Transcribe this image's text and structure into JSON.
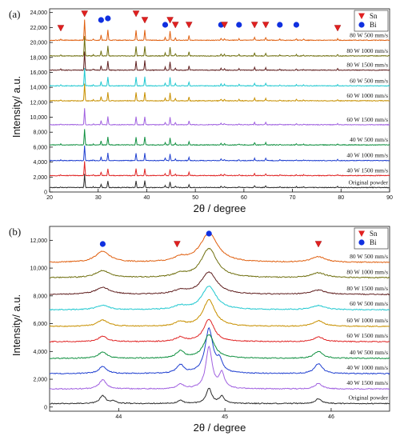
{
  "chart_data": [
    {
      "type": "line",
      "panel_label": "(a)",
      "xlabel": "2θ / degree",
      "ylabel": "Intensity/ a.u.",
      "xlim": [
        20,
        90
      ],
      "ylim": [
        0,
        24500
      ],
      "xticks": [
        20,
        30,
        40,
        50,
        60,
        70,
        80,
        90
      ],
      "yticks": [
        0,
        2000,
        4000,
        6000,
        8000,
        10000,
        12000,
        14000,
        16000,
        18000,
        20000,
        22000,
        24000
      ],
      "ytick_labels": [
        "0",
        "2,000",
        "4,000",
        "6,000",
        "8,000",
        "10,000",
        "12,000",
        "14,000",
        "16,000",
        "18,000",
        "20,000",
        "22,000",
        "24,000"
      ],
      "grid": false,
      "legend": {
        "position": "top-right",
        "entries": [
          {
            "name": "Sn",
            "marker": "triangle-down",
            "color": "#e02020"
          },
          {
            "name": "Bi",
            "marker": "circle",
            "color": "#1030e0"
          }
        ]
      },
      "peaks": [
        {
          "pos": 22.3,
          "h": 0.05
        },
        {
          "pos": 27.2,
          "h": 1.0
        },
        {
          "pos": 29.0,
          "h": 0.06
        },
        {
          "pos": 30.6,
          "h": 0.25
        },
        {
          "pos": 32.0,
          "h": 0.5
        },
        {
          "pos": 37.8,
          "h": 0.5
        },
        {
          "pos": 39.6,
          "h": 0.5
        },
        {
          "pos": 43.8,
          "h": 0.15
        },
        {
          "pos": 44.8,
          "h": 0.45
        },
        {
          "pos": 45.9,
          "h": 0.12
        },
        {
          "pos": 48.7,
          "h": 0.22
        },
        {
          "pos": 55.3,
          "h": 0.1
        },
        {
          "pos": 56.0,
          "h": 0.08
        },
        {
          "pos": 59.0,
          "h": 0.07
        },
        {
          "pos": 62.2,
          "h": 0.15
        },
        {
          "pos": 64.5,
          "h": 0.14
        },
        {
          "pos": 67.4,
          "h": 0.05
        },
        {
          "pos": 70.8,
          "h": 0.07
        },
        {
          "pos": 72.3,
          "h": 0.05
        },
        {
          "pos": 79.3,
          "h": 0.07
        }
      ],
      "peak_amplitude": 2100,
      "series": [
        {
          "name": "Original powder",
          "baseline": 600,
          "color": "#2b2b2b"
        },
        {
          "name": "40 W 1500 mm/s",
          "baseline": 2200,
          "color": "#e02424"
        },
        {
          "name": "40 W 1000 mm/s",
          "baseline": 4200,
          "color": "#2040d0"
        },
        {
          "name": "40 W 500 mm/s",
          "baseline": 6300,
          "color": "#109040"
        },
        {
          "name": "60 W 1500 mm/s",
          "baseline": 9000,
          "color": "#a060e0"
        },
        {
          "name": "60 W 1000 mm/s",
          "baseline": 12200,
          "color": "#c89000"
        },
        {
          "name": "60 W 500 mm/s",
          "baseline": 14200,
          "color": "#20c8d0"
        },
        {
          "name": "80 W 1500 mm/s",
          "baseline": 16300,
          "color": "#602020"
        },
        {
          "name": "80 W 1000 mm/s",
          "baseline": 18200,
          "color": "#707010"
        },
        {
          "name": "80 W 500 mm/s",
          "baseline": 20300,
          "color": "#e06010"
        }
      ],
      "markers": [
        {
          "x": 22.3,
          "type": "Sn"
        },
        {
          "x": 27.2,
          "type": "Sn"
        },
        {
          "x": 30.6,
          "type": "Bi"
        },
        {
          "x": 32.0,
          "type": "Bi"
        },
        {
          "x": 37.8,
          "type": "Sn"
        },
        {
          "x": 39.6,
          "type": "Sn"
        },
        {
          "x": 43.8,
          "type": "Bi"
        },
        {
          "x": 44.8,
          "type": "Sn"
        },
        {
          "x": 45.9,
          "type": "Sn"
        },
        {
          "x": 48.7,
          "type": "Sn"
        },
        {
          "x": 55.3,
          "type": "Bi"
        },
        {
          "x": 56.0,
          "type": "Sn"
        },
        {
          "x": 59.0,
          "type": "Bi"
        },
        {
          "x": 62.2,
          "type": "Sn"
        },
        {
          "x": 64.5,
          "type": "Sn"
        },
        {
          "x": 67.4,
          "type": "Bi"
        },
        {
          "x": 70.8,
          "type": "Bi"
        },
        {
          "x": 79.3,
          "type": "Sn"
        }
      ]
    },
    {
      "type": "line",
      "panel_label": "(b)",
      "xlabel": "2θ / degree",
      "ylabel": "Intensity/ a.u.",
      "xlim": [
        43.35,
        46.55
      ],
      "ylim": [
        -300,
        13000
      ],
      "xticks": [
        44,
        45,
        46
      ],
      "yticks": [
        0,
        2000,
        4000,
        6000,
        8000,
        10000,
        12000
      ],
      "ytick_labels": [
        "0",
        "2,000",
        "4,000",
        "6,000",
        "8,000",
        "10,000",
        "12,000"
      ],
      "grid": false,
      "legend": {
        "position": "top-right",
        "entries": [
          {
            "name": "Sn",
            "marker": "triangle-down",
            "color": "#e02020"
          },
          {
            "name": "Bi",
            "marker": "circle",
            "color": "#1030e0"
          }
        ]
      },
      "markers": [
        {
          "x": 43.85,
          "type": "Bi"
        },
        {
          "x": 44.55,
          "type": "Sn"
        },
        {
          "x": 44.85,
          "type": "Bi"
        },
        {
          "x": 45.88,
          "type": "Sn"
        }
      ],
      "series": [
        {
          "name": "Original powder",
          "baseline": 250,
          "color": "#2b2b2b",
          "peaks": [
            [
              43.85,
              550,
              0.035
            ],
            [
              43.95,
              180,
              0.03
            ],
            [
              44.58,
              250,
              0.03
            ],
            [
              44.85,
              1100,
              0.03
            ],
            [
              44.97,
              500,
              0.03
            ],
            [
              45.88,
              350,
              0.035
            ]
          ]
        },
        {
          "name": "40 W 1500 mm/s",
          "baseline": 1300,
          "color": "#a060e0",
          "peaks": [
            [
              43.85,
              650,
              0.04
            ],
            [
              44.58,
              350,
              0.035
            ],
            [
              44.85,
              3000,
              0.035
            ],
            [
              44.97,
              1100,
              0.03
            ],
            [
              45.88,
              400,
              0.04
            ]
          ]
        },
        {
          "name": "40 W 1000 mm/s",
          "baseline": 2400,
          "color": "#2040d0",
          "peaks": [
            [
              43.85,
              500,
              0.045
            ],
            [
              44.58,
              600,
              0.04
            ],
            [
              44.85,
              3200,
              0.045
            ],
            [
              44.95,
              800,
              0.03
            ],
            [
              45.88,
              700,
              0.045
            ]
          ]
        },
        {
          "name": "40 W 500 mm/s",
          "baseline": 3500,
          "color": "#109040",
          "peaks": [
            [
              43.85,
              450,
              0.05
            ],
            [
              44.58,
              500,
              0.045
            ],
            [
              44.85,
              1700,
              0.06
            ],
            [
              45.88,
              500,
              0.05
            ]
          ]
        },
        {
          "name": "60 W 1500 mm/s",
          "baseline": 4700,
          "color": "#e02424",
          "peaks": [
            [
              43.85,
              400,
              0.05
            ],
            [
              44.58,
              300,
              0.05
            ],
            [
              44.85,
              1600,
              0.06
            ],
            [
              45.88,
              350,
              0.055
            ]
          ]
        },
        {
          "name": "60 W 1000 mm/s",
          "baseline": 5800,
          "color": "#c89000",
          "peaks": [
            [
              43.85,
              450,
              0.06
            ],
            [
              44.58,
              300,
              0.05
            ],
            [
              44.85,
              1900,
              0.07
            ],
            [
              45.88,
              400,
              0.06
            ]
          ]
        },
        {
          "name": "60 W 500 mm/s",
          "baseline": 7000,
          "color": "#20c8d0",
          "peaks": [
            [
              43.85,
              300,
              0.07
            ],
            [
              44.58,
              250,
              0.06
            ],
            [
              44.85,
              1700,
              0.08
            ],
            [
              45.88,
              300,
              0.07
            ]
          ]
        },
        {
          "name": "80 W 1500 mm/s",
          "baseline": 8100,
          "color": "#602020",
          "peaks": [
            [
              43.85,
              500,
              0.08
            ],
            [
              44.58,
              250,
              0.07
            ],
            [
              44.85,
              1600,
              0.09
            ],
            [
              45.88,
              300,
              0.08
            ]
          ]
        },
        {
          "name": "80 W 1000 mm/s",
          "baseline": 9300,
          "color": "#707010",
          "peaks": [
            [
              43.85,
              500,
              0.08
            ],
            [
              44.58,
              250,
              0.07
            ],
            [
              44.85,
              2100,
              0.09
            ],
            [
              45.88,
              350,
              0.08
            ]
          ]
        },
        {
          "name": "80 W 500 mm/s",
          "baseline": 10400,
          "color": "#e06010",
          "peaks": [
            [
              43.85,
              800,
              0.08
            ],
            [
              44.58,
              300,
              0.07
            ],
            [
              44.85,
              2100,
              0.1
            ],
            [
              45.88,
              400,
              0.08
            ]
          ]
        }
      ]
    }
  ]
}
